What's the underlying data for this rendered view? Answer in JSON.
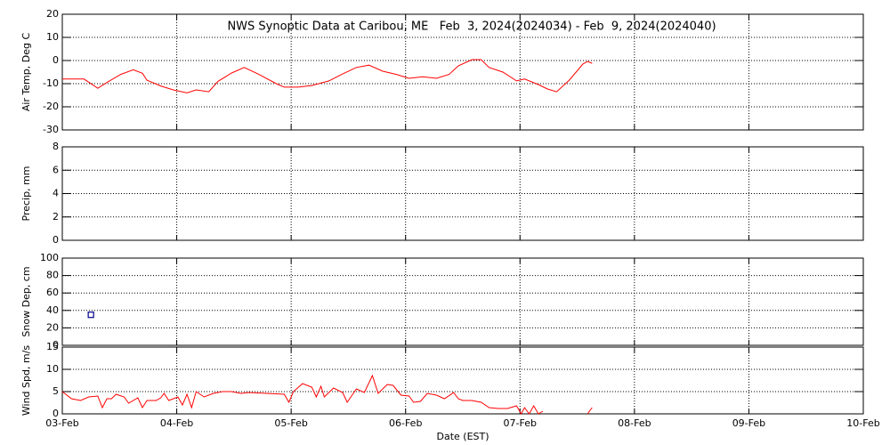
{
  "chart_data": [
    {
      "type": "line",
      "title": "NWS Synoptic Data at Caribou, ME   Feb  3, 2024(2024034) - Feb  9, 2024(2024040)",
      "ylabel": "Air Temp, Deg C",
      "ylim": [
        -30,
        20
      ],
      "yticks": [
        -30,
        -20,
        -10,
        0,
        10,
        20
      ],
      "grid": true,
      "series": [
        {
          "color": "#ff0000",
          "x": [
            0,
            0.19,
            0.31,
            0.39,
            0.51,
            0.62,
            0.7,
            0.74,
            0.86,
            0.97,
            1.09,
            1.17,
            1.28,
            1.36,
            1.48,
            1.59,
            1.71,
            1.87,
            1.94,
            2.06,
            2.18,
            2.33,
            2.45,
            2.57,
            2.68,
            2.8,
            2.92,
            3.03,
            3.15,
            3.27,
            3.38,
            3.46,
            3.58,
            3.66,
            3.73,
            3.85,
            3.97,
            4.04,
            4.16,
            4.24,
            4.32,
            4.43,
            4.55,
            4.59,
            4.63
          ],
          "values": [
            -8,
            -8,
            -12,
            -9.5,
            -6,
            -4,
            -5.5,
            -8.5,
            -11,
            -12.7,
            -14,
            -12.7,
            -13.5,
            -9,
            -5.4,
            -3,
            -5.8,
            -10,
            -11.5,
            -11.5,
            -10.8,
            -8.8,
            -5.8,
            -3,
            -2,
            -4.6,
            -6,
            -7.7,
            -7,
            -7.7,
            -6,
            -2.3,
            0.4,
            0.4,
            -3,
            -5,
            -8.8,
            -8,
            -10.4,
            -12.3,
            -13.5,
            -8.5,
            -1.5,
            -0.4,
            -1.2
          ]
        }
      ]
    },
    {
      "type": "line",
      "ylabel": "Precip, mm",
      "ylim": [
        0,
        8
      ],
      "yticks": [
        0,
        2,
        4,
        6,
        8
      ],
      "grid": true,
      "series": []
    },
    {
      "type": "scatter",
      "ylabel": "Snow Dep, cm",
      "ylim": [
        0,
        100
      ],
      "yticks": [
        0,
        20,
        40,
        60,
        80,
        100
      ],
      "grid": true,
      "series": [
        {
          "color": "#00008b",
          "x": [
            0.25
          ],
          "values": [
            35
          ]
        }
      ]
    },
    {
      "type": "line",
      "ylabel": "Wind Spd, m/s",
      "ylim": [
        0,
        15
      ],
      "yticks": [
        0,
        5,
        10,
        15
      ],
      "grid": true,
      "xlabel": "Date (EST)",
      "xlim": [
        0,
        7
      ],
      "xticks": [
        {
          "value": 0,
          "label": "03-Feb"
        },
        {
          "value": 1,
          "label": "04-Feb"
        },
        {
          "value": 2,
          "label": "05-Feb"
        },
        {
          "value": 3,
          "label": "06-Feb"
        },
        {
          "value": 4,
          "label": "07-Feb"
        },
        {
          "value": 5,
          "label": "08-Feb"
        },
        {
          "value": 6,
          "label": "09-Feb"
        },
        {
          "value": 7,
          "label": "10-Feb"
        }
      ],
      "series": [
        {
          "color": "#ff0000",
          "x": [
            0,
            0.08,
            0.16,
            0.23,
            0.31,
            0.35,
            0.39,
            0.43,
            0.47,
            0.54,
            0.58,
            0.66,
            0.7,
            0.74,
            0.82,
            0.86,
            0.89,
            0.93,
            1.01,
            1.05,
            1.09,
            1.13,
            1.17,
            1.24,
            1.32,
            1.4,
            1.48,
            1.56,
            1.63,
            1.79,
            1.94,
            1.98,
            2.02,
            2.1,
            2.18,
            2.22,
            2.26,
            2.29,
            2.37,
            2.45,
            2.49,
            2.57,
            2.64,
            2.71,
            2.76,
            2.84,
            2.89,
            2.96,
            3.03,
            3.07,
            3.13,
            3.19,
            3.27,
            3.34,
            3.42,
            3.46,
            3.5,
            3.58,
            3.66,
            3.73,
            3.81,
            3.89,
            3.97,
            4.01,
            4.04,
            4.08,
            4.12,
            4.16,
            4.2,
            4.4,
            4.59,
            4.63
          ],
          "values": [
            5,
            3.4,
            3,
            3.8,
            4,
            1.4,
            3.4,
            3.4,
            4.4,
            3.8,
            2.4,
            3.6,
            1.4,
            3,
            3,
            3.6,
            4.6,
            3,
            3.8,
            2,
            4.4,
            1.4,
            5,
            3.8,
            4.6,
            5,
            5,
            4.6,
            4.8,
            4.6,
            4.4,
            2.6,
            5,
            6.8,
            6,
            3.8,
            6.2,
            3.8,
            5.8,
            4.8,
            2.6,
            5.6,
            4.8,
            8.6,
            4.6,
            6.6,
            6.4,
            4.2,
            4,
            2.6,
            2.8,
            4.6,
            4.2,
            3.4,
            4.8,
            3.4,
            3,
            3,
            2.6,
            1.4,
            1.2,
            1.2,
            1.8,
            0,
            1.4,
            0,
            1.8,
            0,
            0.6,
            null,
            0,
            1.4
          ]
        }
      ]
    }
  ]
}
